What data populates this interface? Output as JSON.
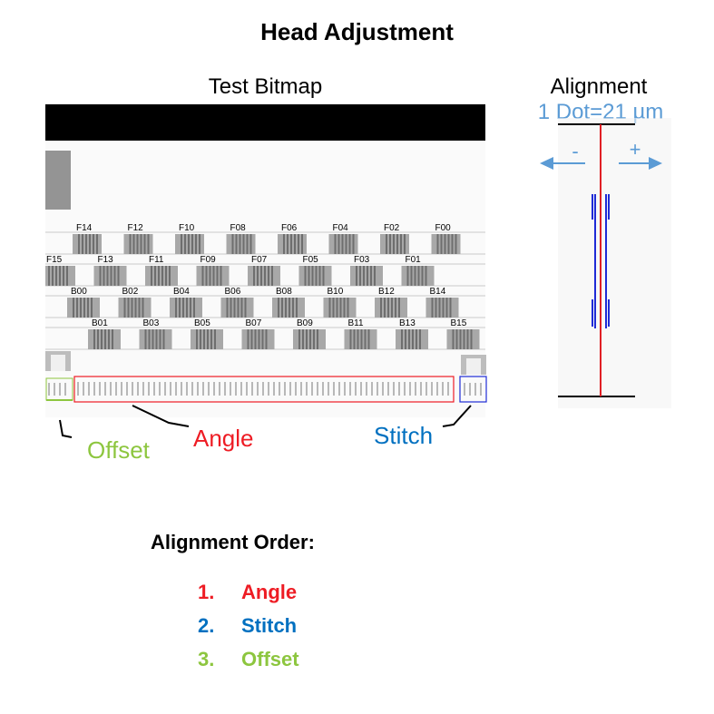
{
  "title": "Head Adjustment",
  "test_bitmap": {
    "title": "Test Bitmap",
    "rows": [
      [
        "F14",
        "F12",
        "F10",
        "F08",
        "F06",
        "F04",
        "F02",
        "F00"
      ],
      [
        "F15",
        "F13",
        "F11",
        "F09",
        "F07",
        "F05",
        "F03",
        "F01"
      ],
      [
        "B00",
        "B02",
        "B04",
        "B06",
        "B08",
        "B10",
        "B12",
        "B14"
      ],
      [
        "B01",
        "B03",
        "B05",
        "B07",
        "B09",
        "B11",
        "B13",
        "B15"
      ]
    ]
  },
  "alignment": {
    "title": "Alignment",
    "dot_label": "1 Dot=21 µm",
    "minus": "-",
    "plus": "+"
  },
  "callouts": {
    "offset": "Offset",
    "angle": "Angle",
    "stitch": "Stitch"
  },
  "order": {
    "title": "Alignment Order:",
    "items": [
      {
        "num": "1.",
        "label": "Angle",
        "color": "#ee1c24"
      },
      {
        "num": "2.",
        "label": "Stitch",
        "color": "#0070c0"
      },
      {
        "num": "3.",
        "label": "Offset",
        "color": "#8dc63f"
      }
    ]
  }
}
